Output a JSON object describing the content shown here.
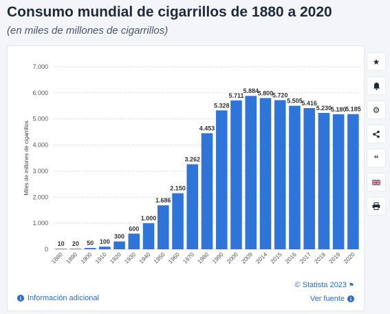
{
  "page": {
    "title": "Consumo mundial de cigarrillos de 1880 a 2020",
    "subtitle": "(en miles de millones de cigarrillos)"
  },
  "footer": {
    "credit": "© Statista 2023",
    "info": "Información adicional",
    "source": "Ver fuente"
  },
  "toolbar": {
    "icons": [
      "star-icon",
      "bell-icon",
      "gear-icon",
      "share-icon",
      "quote-icon",
      "flag-icon",
      "print-icon"
    ]
  },
  "colors": {
    "bar": "#2f74d8",
    "grid": "#d5d9df",
    "text": "#333333",
    "accent": "#2b6cc4"
  },
  "chart_data": {
    "type": "bar",
    "ylabel": "Miles de millones de cigarrillos",
    "ylim": [
      0,
      7000
    ],
    "yticks": [
      0,
      1000,
      2000,
      3000,
      4000,
      5000,
      6000,
      7000
    ],
    "ytick_labels": [
      "0",
      "1.000",
      "2.000",
      "3.000",
      "4.000",
      "5.000",
      "6.000",
      "7.000"
    ],
    "grid": true,
    "categories": [
      "1880",
      "1890",
      "1900",
      "1910",
      "1920",
      "1930",
      "1940",
      "1950",
      "1960",
      "1970",
      "1980",
      "1990",
      "2000",
      "2009",
      "2014",
      "2015",
      "2016",
      "2017",
      "2018",
      "2019",
      "2020"
    ],
    "values": [
      10,
      20,
      50,
      100,
      300,
      600,
      1000,
      1686,
      2150,
      3262,
      4453,
      5328,
      5711,
      5884,
      5800,
      5720,
      5505,
      5416,
      5230,
      5180,
      5185
    ],
    "value_labels": [
      "10",
      "20",
      "50",
      "100",
      "300",
      "600",
      "1.000",
      "1.686",
      "2.150",
      "3.262",
      "4.453",
      "5.328",
      "5.711",
      "5.884",
      "5.800",
      "5.720",
      "5.505",
      "5.416",
      "5.230",
      "5.180",
      "5.185"
    ]
  }
}
